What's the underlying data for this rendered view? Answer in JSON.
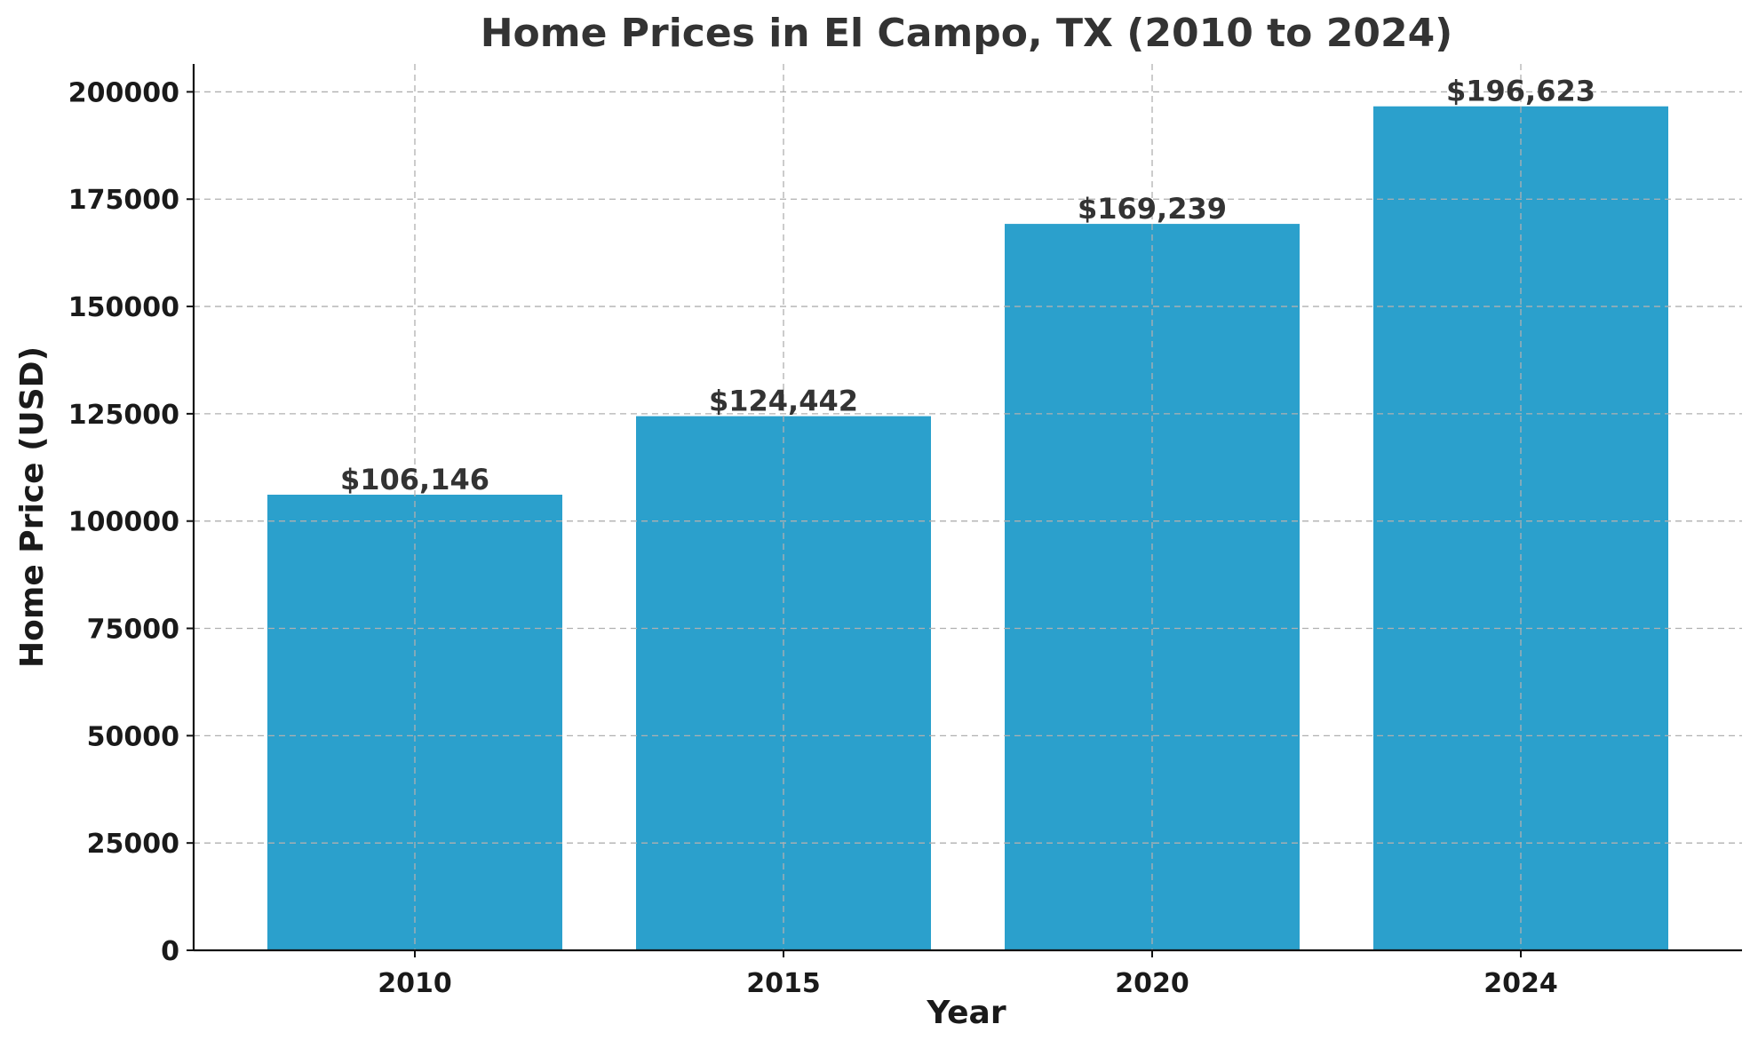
{
  "chart_data": {
    "type": "bar",
    "title": "Home Prices in El Campo, TX (2010 to 2024)",
    "xlabel": "Year",
    "ylabel": "Home Price (USD)",
    "categories": [
      "2010",
      "2015",
      "2020",
      "2024"
    ],
    "values": [
      106146,
      124442,
      169239,
      196623
    ],
    "value_labels": [
      "$106,146",
      "$124,442",
      "$169,239",
      "$196,623"
    ],
    "yticks": [
      0,
      25000,
      50000,
      75000,
      100000,
      125000,
      150000,
      175000,
      200000
    ],
    "ylim": [
      0,
      206500
    ],
    "grid": true,
    "bar_color": "#2ba0cc"
  }
}
